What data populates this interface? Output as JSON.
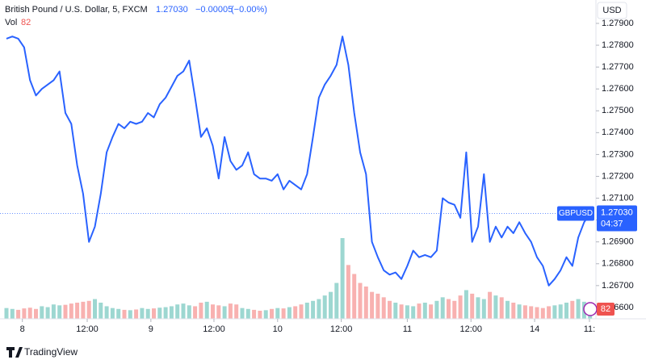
{
  "chart_data": {
    "type": "line",
    "title": "British Pound / U.S. Dollar, 5, FXCM",
    "last_price": {
      "value": 1.2703,
      "label": "1.27030"
    },
    "change": "−0.00005",
    "change_pct": "(−0.00%)",
    "currency": "USD",
    "countdown": "04:37",
    "volume_label": "Vol",
    "series": [
      {
        "name": "GBPUSD",
        "color": "#2962ff",
        "values": [
          1.2783,
          1.2784,
          1.2783,
          1.2779,
          1.2764,
          1.2757,
          1.276,
          1.2762,
          1.2764,
          1.2768,
          1.2749,
          1.2744,
          1.2725,
          1.2712,
          1.269,
          1.2697,
          1.2712,
          1.2731,
          1.2738,
          1.2744,
          1.2742,
          1.2745,
          1.2744,
          1.2745,
          1.2749,
          1.2747,
          1.2753,
          1.2756,
          1.2761,
          1.2766,
          1.2768,
          1.2773,
          1.2756,
          1.2738,
          1.2742,
          1.2734,
          1.2719,
          1.2738,
          1.2727,
          1.2723,
          1.2725,
          1.2731,
          1.2721,
          1.2719,
          1.2719,
          1.2718,
          1.2721,
          1.2714,
          1.2718,
          1.2716,
          1.2714,
          1.2721,
          1.2738,
          1.2756,
          1.2762,
          1.2766,
          1.2771,
          1.2784,
          1.2771,
          1.2749,
          1.2731,
          1.2721,
          1.269,
          1.2683,
          1.2677,
          1.2675,
          1.2676,
          1.2673,
          1.2679,
          1.2686,
          1.2683,
          1.2684,
          1.2683,
          1.2686,
          1.271,
          1.2708,
          1.2707,
          1.2701,
          1.2731,
          1.269,
          1.2697,
          1.2721,
          1.269,
          1.2697,
          1.2692,
          1.2697,
          1.2694,
          1.2699,
          1.2694,
          1.269,
          1.2683,
          1.2679,
          1.267,
          1.2673,
          1.2677,
          1.2683,
          1.2679,
          1.2692,
          1.2699,
          1.2703
        ]
      }
    ],
    "volume": {
      "up_color": "#26a69a",
      "down_color": "#ef5350",
      "values": [
        60,
        55,
        50,
        58,
        62,
        55,
        70,
        65,
        80,
        75,
        78,
        85,
        90,
        95,
        100,
        110,
        90,
        70,
        60,
        55,
        50,
        48,
        52,
        60,
        55,
        58,
        62,
        65,
        70,
        80,
        85,
        75,
        70,
        90,
        95,
        80,
        75,
        70,
        85,
        80,
        60,
        55,
        50,
        45,
        48,
        55,
        60,
        58,
        65,
        70,
        80,
        90,
        100,
        110,
        130,
        150,
        200,
        450,
        300,
        250,
        200,
        180,
        150,
        140,
        120,
        100,
        90,
        80,
        75,
        70,
        85,
        90,
        80,
        100,
        120,
        110,
        100,
        130,
        160,
        140,
        120,
        110,
        150,
        130,
        120,
        100,
        90,
        80,
        75,
        70,
        65,
        60,
        70,
        75,
        80,
        90,
        100,
        110,
        95,
        82
      ]
    },
    "xlim": [
      0,
      100
    ],
    "xticks": [
      {
        "value": 2.7,
        "label": "8"
      },
      {
        "value": 13.7,
        "label": "12:00"
      },
      {
        "value": 24.5,
        "label": "9"
      },
      {
        "value": 35.2,
        "label": "12:00"
      },
      {
        "value": 46,
        "label": "10"
      },
      {
        "value": 56.8,
        "label": "12:00"
      },
      {
        "value": 68,
        "label": "11"
      },
      {
        "value": 78.8,
        "label": "12:00"
      },
      {
        "value": 89.6,
        "label": "14"
      },
      {
        "value": 98.9,
        "label": "11:"
      }
    ],
    "ylim": [
      1.26548,
      1.28007
    ],
    "yticks": [
      {
        "value": 1.266,
        "label": "1.26600"
      },
      {
        "value": 1.267,
        "label": "1.26700"
      },
      {
        "value": 1.268,
        "label": "1.26800"
      },
      {
        "value": 1.269,
        "label": "1.26900"
      },
      {
        "value": 1.27,
        "label": "1.27000"
      },
      {
        "value": 1.271,
        "label": "1.27100"
      },
      {
        "value": 1.272,
        "label": "1.27200"
      },
      {
        "value": 1.273,
        "label": "1.27300"
      },
      {
        "value": 1.274,
        "label": "1.27400"
      },
      {
        "value": 1.275,
        "label": "1.27500"
      },
      {
        "value": 1.276,
        "label": "1.27600"
      },
      {
        "value": 1.277,
        "label": "1.27700"
      },
      {
        "value": 1.278,
        "label": "1.27800"
      },
      {
        "value": 1.279,
        "label": "1.27900"
      }
    ],
    "grid": false
  },
  "branding": "TradingView"
}
